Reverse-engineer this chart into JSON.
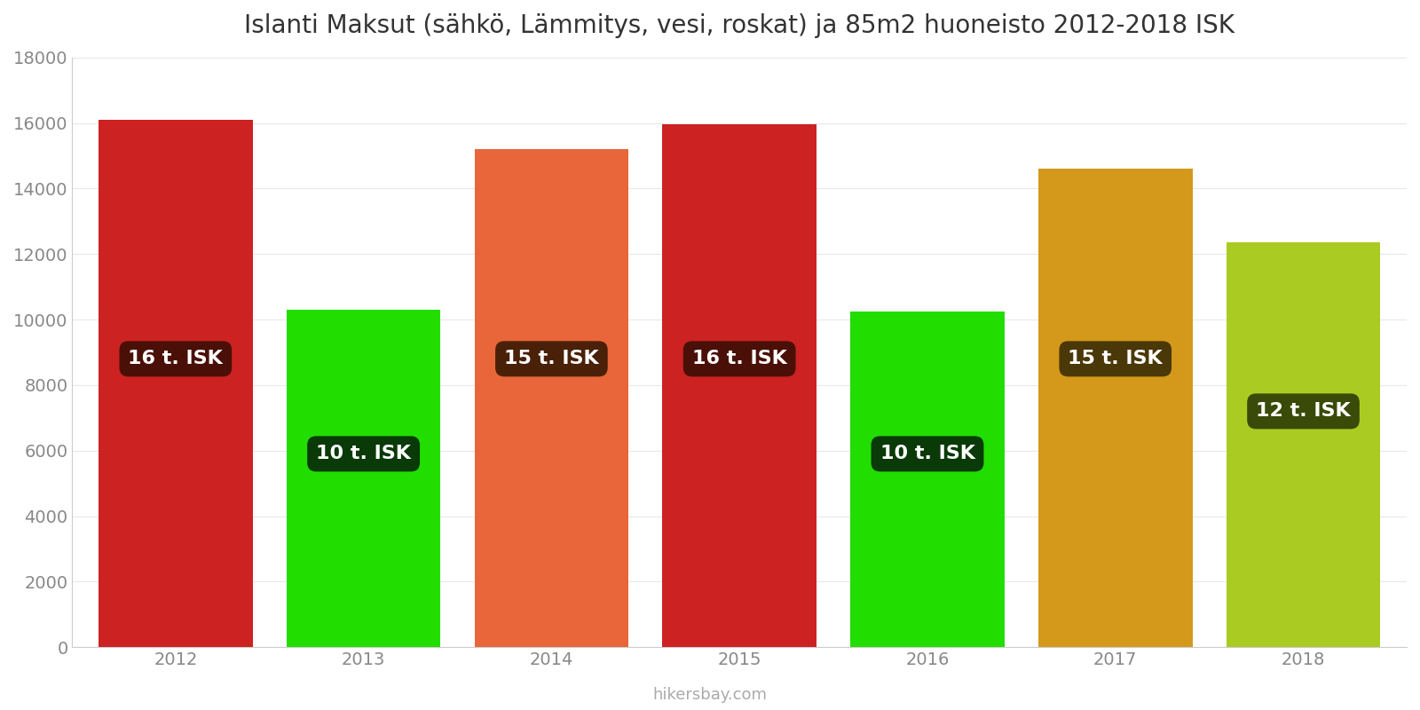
{
  "title": "Islanti Maksut (sähkö, Lämmitys, vesi, roskat) ja 85m2 huoneisto 2012-2018 ISK",
  "years": [
    2012,
    2013,
    2014,
    2015,
    2016,
    2017,
    2018
  ],
  "values": [
    16100,
    10300,
    15200,
    15950,
    10250,
    14600,
    12350
  ],
  "bar_colors": [
    "#cc2222",
    "#22dd00",
    "#e8663a",
    "#cc2222",
    "#22dd00",
    "#d4991a",
    "#aacc22"
  ],
  "labels": [
    "16 t. ISK",
    "10 t. ISK",
    "15 t. ISK",
    "16 t. ISK",
    "10 t. ISK",
    "15 t. ISK",
    "12 t. ISK"
  ],
  "label_bg_colors": [
    "#4a1008",
    "#0a3a08",
    "#4a2008",
    "#4a1008",
    "#0a3a08",
    "#4a3808",
    "#3a4a08"
  ],
  "ylim": [
    0,
    18000
  ],
  "yticks": [
    0,
    2000,
    4000,
    6000,
    8000,
    10000,
    12000,
    14000,
    16000,
    18000
  ],
  "watermark": "hikersbay.com",
  "label_y_positions": [
    8800,
    5900,
    8800,
    8800,
    5900,
    8800,
    7200
  ],
  "background_color": "#ffffff",
  "bar_width": 0.82
}
